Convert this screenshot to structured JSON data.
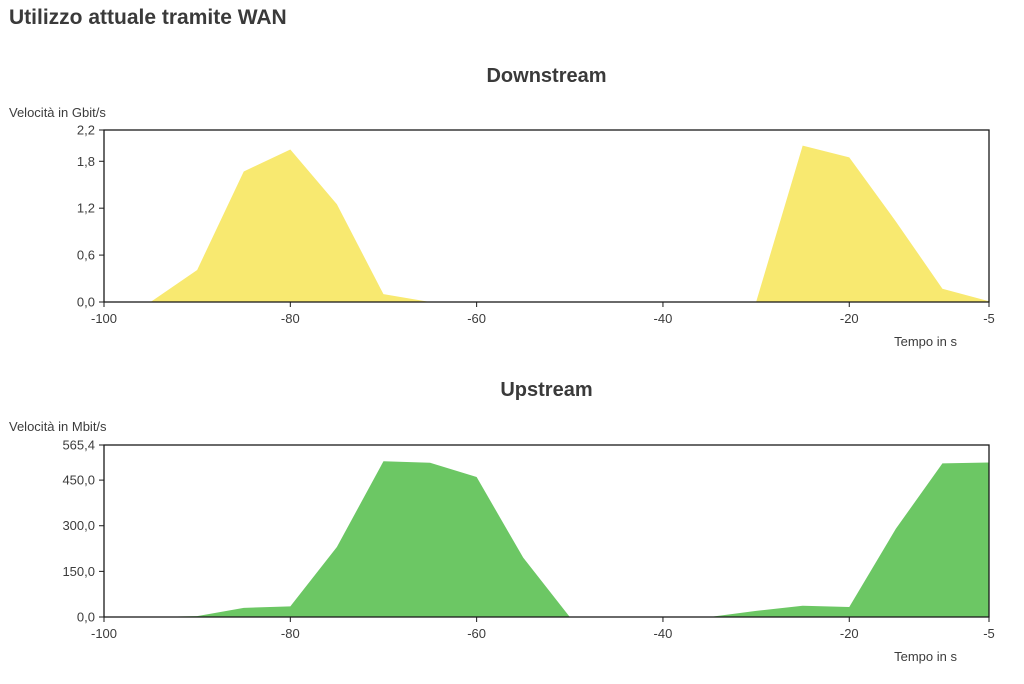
{
  "page": {
    "title": "Utilizzo attuale tramite WAN"
  },
  "colors": {
    "downstream_fill": "#f8e970",
    "upstream_fill": "#6cc764",
    "axis": "#1a1a1a",
    "text": "#3c3c3c"
  },
  "chart_data": [
    {
      "type": "area",
      "title": "Downstream",
      "ylabel": "Velocità in Gbit/s",
      "xlabel": "Tempo in s",
      "xlim": [
        -100,
        -5
      ],
      "ylim": [
        0,
        2.2
      ],
      "x_ticks": [
        -100,
        -80,
        -60,
        -40,
        -20,
        -5
      ],
      "x_tick_labels": [
        "-100",
        "-80",
        "-60",
        "-40",
        "-20",
        "-5"
      ],
      "y_ticks": [
        0,
        0.6,
        1.2,
        1.8,
        2.2
      ],
      "y_tick_labels": [
        "0,0",
        "0,6",
        "1,2",
        "1,8",
        "2,2"
      ],
      "grid": false,
      "series": [
        {
          "x": [
            -95,
            -90,
            -85,
            -80,
            -75,
            -70,
            -65,
            -60,
            -55,
            -50,
            -45,
            -40,
            -35,
            -30,
            -25,
            -20,
            -15,
            -10,
            -5
          ],
          "values": [
            0,
            0.41,
            1.67,
            1.95,
            1.25,
            0.1,
            0,
            0,
            0,
            0,
            0,
            0,
            0,
            0,
            2.0,
            1.85,
            1.03,
            0.17,
            0.01
          ]
        }
      ]
    },
    {
      "type": "area",
      "title": "Upstream",
      "ylabel": "Velocità in Mbit/s",
      "xlabel": "Tempo in s",
      "xlim": [
        -100,
        -5
      ],
      "ylim": [
        0,
        565.4
      ],
      "x_ticks": [
        -100,
        -80,
        -60,
        -40,
        -20,
        -5
      ],
      "x_tick_labels": [
        "-100",
        "-80",
        "-60",
        "-40",
        "-20",
        "-5"
      ],
      "y_ticks": [
        0,
        150,
        300,
        450,
        565.4
      ],
      "y_tick_labels": [
        "0,0",
        "150,0",
        "300,0",
        "450,0",
        "565,4"
      ],
      "grid": false,
      "series": [
        {
          "x": [
            -95,
            -90,
            -85,
            -80,
            -75,
            -70,
            -65,
            -60,
            -55,
            -50,
            -45,
            -40,
            -35,
            -30,
            -25,
            -20,
            -15,
            -10,
            -5
          ],
          "values": [
            0,
            3,
            30,
            35,
            230,
            512,
            507,
            460,
            195,
            0,
            0,
            0,
            0,
            20,
            37,
            33,
            290,
            505,
            508
          ]
        }
      ]
    }
  ]
}
